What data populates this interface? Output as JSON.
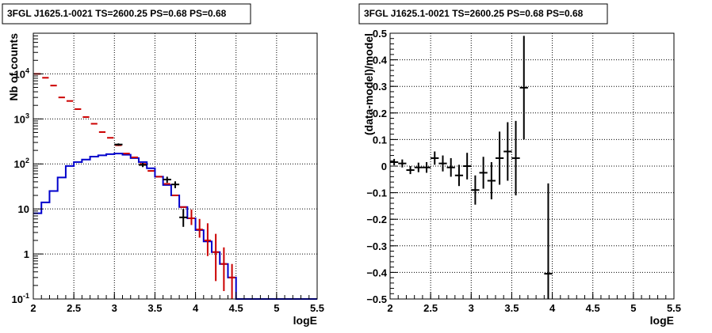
{
  "chart_data": [
    {
      "type": "step",
      "title": "3FGL J1625.1-0021 TS=2600.25 PS=0.68 PS=0.68",
      "xlabel": "logE",
      "ylabel": "Nb of counts",
      "xlim": [
        2,
        5.5
      ],
      "ylim": [
        0.1,
        80000
      ],
      "yscale": "log",
      "grid": true,
      "x_ticks": [
        {
          "v": 2,
          "label": "2"
        },
        {
          "v": 2.5,
          "label": "2.5"
        },
        {
          "v": 3,
          "label": "3"
        },
        {
          "v": 3.5,
          "label": "3.5"
        },
        {
          "v": 4,
          "label": "4"
        },
        {
          "v": 4.5,
          "label": "4.5"
        },
        {
          "v": 5,
          "label": "5"
        },
        {
          "v": 5.5,
          "label": "5.5"
        }
      ],
      "y_ticks": [
        {
          "v": 0.1,
          "label": "10^-1"
        },
        {
          "v": 1,
          "label": "1"
        },
        {
          "v": 10,
          "label": "10"
        },
        {
          "v": 100,
          "label": "10^2"
        },
        {
          "v": 1000,
          "label": "10^3"
        },
        {
          "v": 10000,
          "label": "10^4"
        }
      ],
      "colors": {
        "model_total": "#cc0000",
        "model_source": "#0000cc",
        "data": "#000000"
      },
      "bin_width": 0.1,
      "x": [
        2.05,
        2.15,
        2.25,
        2.35,
        2.45,
        2.55,
        2.65,
        2.75,
        2.85,
        2.95,
        3.05,
        3.15,
        3.25,
        3.35,
        3.45,
        3.55,
        3.65,
        3.75,
        3.85,
        3.95,
        4.05,
        4.15,
        4.25,
        4.35,
        4.45,
        4.55,
        4.65,
        4.75,
        4.85,
        4.95,
        5.05,
        5.15,
        5.25,
        5.35,
        5.45
      ],
      "series": [
        {
          "key": "model_total",
          "values": [
            10000,
            8200,
            5500,
            3000,
            2500,
            1650,
            1100,
            780,
            510,
            380,
            260,
            170,
            140,
            100,
            70,
            52,
            36,
            20,
            11,
            6.2,
            3.5,
            2,
            1.1,
            0.6,
            0.3,
            0.1,
            0.1,
            0.1,
            0.1,
            0.1,
            0.1,
            0.1,
            0.1,
            0.1,
            0.1
          ],
          "err_lo": [
            0,
            0,
            0,
            0,
            0,
            0,
            0,
            0,
            0,
            0,
            0,
            0,
            0,
            0,
            0,
            0,
            0,
            0,
            0,
            1.8,
            1.2,
            1.1,
            0.85,
            0.45,
            0.2,
            0,
            0,
            0,
            0,
            0,
            0,
            0,
            0,
            0,
            0
          ],
          "err_hi": [
            0,
            0,
            0,
            0,
            0,
            0,
            0,
            0,
            0,
            0,
            0,
            0,
            0,
            0,
            0,
            0,
            0,
            0,
            0,
            3.5,
            2.5,
            2.8,
            1.7,
            0.8,
            0.3,
            0,
            0,
            0,
            0,
            0,
            0,
            0,
            0,
            0,
            0
          ]
        },
        {
          "key": "model_source",
          "values": [
            8,
            14,
            25,
            50,
            90,
            110,
            125,
            145,
            155,
            165,
            170,
            160,
            135,
            110,
            80,
            52,
            34,
            20,
            11,
            6.2,
            3.4,
            1.9,
            1.1,
            0.6,
            0.3,
            0.1,
            0.1,
            0.1,
            0.1,
            0.1,
            0.1,
            0.1,
            0.1,
            0.1,
            0.1
          ]
        },
        {
          "key": "data",
          "x": [
            3.05,
            3.35,
            3.65,
            3.75,
            3.85
          ],
          "values": [
            270,
            95,
            45,
            35,
            6.5
          ],
          "err_lo": [
            16,
            10,
            7,
            6,
            2.5
          ],
          "err_hi": [
            16,
            10,
            7,
            6,
            3.5
          ]
        }
      ]
    },
    {
      "type": "errorbar",
      "title": "3FGL J1625.1-0021 TS=2600.25 PS=0.68 PS=0.68",
      "xlabel": "logE",
      "ylabel": "(data-model)/model",
      "xlim": [
        2,
        5.5
      ],
      "ylim": [
        -0.5,
        0.5
      ],
      "grid": true,
      "x_ticks": [
        {
          "v": 2,
          "label": "2"
        },
        {
          "v": 2.5,
          "label": "2.5"
        },
        {
          "v": 3,
          "label": "3"
        },
        {
          "v": 3.5,
          "label": "3.5"
        },
        {
          "v": 4,
          "label": "4"
        },
        {
          "v": 4.5,
          "label": "4.5"
        },
        {
          "v": 5,
          "label": "5"
        },
        {
          "v": 5.5,
          "label": "5.5"
        }
      ],
      "y_ticks": [
        {
          "v": -0.5,
          "label": "−0.5"
        },
        {
          "v": -0.4,
          "label": "−0.4"
        },
        {
          "v": -0.3,
          "label": "−0.3"
        },
        {
          "v": -0.2,
          "label": "−0.2"
        },
        {
          "v": -0.1,
          "label": "−0.1"
        },
        {
          "v": 0,
          "label": "0"
        },
        {
          "v": 0.1,
          "label": "0.1"
        },
        {
          "v": 0.2,
          "label": "0.2"
        },
        {
          "v": 0.3,
          "label": "0.3"
        },
        {
          "v": 0.4,
          "label": "0.4"
        },
        {
          "v": 0.5,
          "label": "0.5"
        }
      ],
      "colors": {
        "points": "#000000"
      },
      "bin_width": 0.1,
      "x": [
        2.05,
        2.15,
        2.25,
        2.35,
        2.45,
        2.55,
        2.65,
        2.75,
        2.85,
        2.95,
        3.05,
        3.15,
        3.25,
        3.35,
        3.45,
        3.55,
        3.65,
        3.95
      ],
      "values": [
        0.015,
        0.01,
        -0.015,
        -0.005,
        -0.005,
        0.03,
        0.01,
        -0.005,
        -0.035,
        0.0,
        -0.09,
        -0.025,
        -0.055,
        0.03,
        0.055,
        0.03,
        0.295,
        -0.405
      ],
      "err": [
        0.012,
        0.015,
        0.015,
        0.018,
        0.02,
        0.025,
        0.03,
        0.035,
        0.04,
        0.05,
        0.055,
        0.06,
        0.07,
        0.1,
        0.11,
        0.14,
        0.195,
        0.34
      ]
    }
  ]
}
